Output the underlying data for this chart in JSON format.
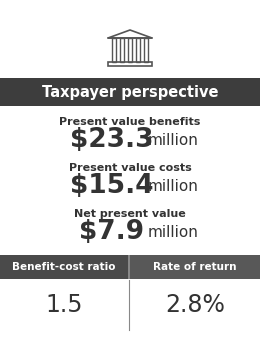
{
  "title": "Taxpayer perspective",
  "header_bg": "#3d3d3d",
  "header_text_color": "#ffffff",
  "bg_color": "#ffffff",
  "label1": "Present value benefits",
  "value1": "$23.3 million",
  "label2": "Present value costs",
  "value2": "$15.4 million",
  "label3": "Net present value",
  "value3": "$7.9 million",
  "footer_bg": "#4a4a4a",
  "footer_text_color": "#ffffff",
  "footer_label1": "Benefit-cost ratio",
  "footer_value1": "1.5",
  "footer_label2": "Rate of return",
  "footer_value2": "2.8%",
  "body_text_color": "#333333",
  "label_fontsize": 8.0,
  "value_fontsize": 19,
  "unit_fontsize": 11,
  "icon_color": "#555555",
  "divider_color": "#888888"
}
